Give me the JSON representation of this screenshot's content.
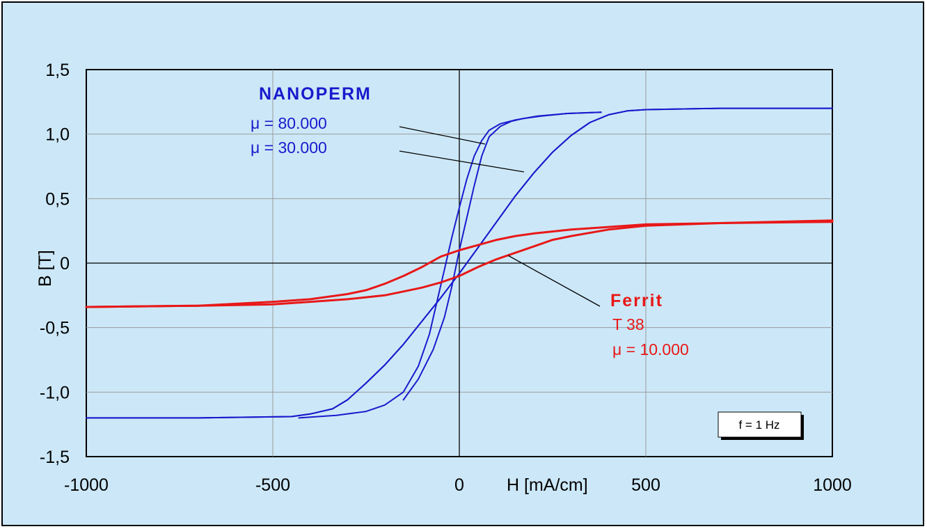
{
  "chart_data": {
    "type": "line",
    "xlabel": "H [mA/cm]",
    "ylabel": "B [T]",
    "xlim": [
      -1000,
      1000
    ],
    "ylim": [
      -1.5,
      1.5
    ],
    "x_ticks": [
      "-1000",
      "-500",
      "0",
      "500",
      "1000"
    ],
    "y_ticks": [
      "-1,5",
      "-1,0",
      "-0,5",
      "0",
      "0,5",
      "1,0",
      "1,5"
    ],
    "grid": true,
    "colors": {
      "nanoperm": "#1a1acc",
      "ferrit": "#e81818",
      "background": "#cce8f8",
      "plot": "#cce8f8"
    },
    "annotations": {
      "nanoperm": {
        "title": "NANOPERM",
        "lines": [
          "μ = 80.000",
          "μ = 30.000"
        ]
      },
      "ferrit": {
        "title": "Ferrit",
        "lines": [
          "T 38",
          "μ = 10.000"
        ]
      },
      "frequency": "f = 1 Hz"
    },
    "series": [
      {
        "color": "#1a1acc",
        "x": [
          -1000,
          -700,
          -450,
          -400,
          -340,
          -300,
          -250,
          -200,
          -150,
          -100,
          -50,
          0,
          50,
          100,
          150,
          200,
          250,
          300,
          350,
          400,
          450,
          500,
          700,
          1000
        ],
        "y": [
          -1.2,
          -1.2,
          -1.19,
          -1.17,
          -1.13,
          -1.06,
          -0.93,
          -0.79,
          -0.63,
          -0.45,
          -0.27,
          -0.08,
          0.12,
          0.32,
          0.52,
          0.7,
          0.86,
          0.99,
          1.09,
          1.15,
          1.18,
          1.19,
          1.2,
          1.2
        ]
      },
      {
        "color": "#1a1acc",
        "x": [
          -1000,
          -700,
          -450,
          -400,
          -340,
          -300,
          -250,
          -200,
          -150,
          -100,
          -50,
          0,
          50,
          100,
          150,
          200,
          250,
          300,
          350,
          400,
          450,
          500,
          700,
          1000
        ],
        "y": [
          -1.2,
          -1.2,
          -1.19,
          -1.17,
          -1.13,
          -1.06,
          -0.93,
          -0.79,
          -0.63,
          -0.45,
          -0.27,
          -0.08,
          0.12,
          0.32,
          0.52,
          0.7,
          0.86,
          0.99,
          1.09,
          1.15,
          1.18,
          1.19,
          1.2,
          1.2
        ]
      },
      {
        "color": "#1a1acc",
        "x": [
          -430,
          -330,
          -250,
          -200,
          -150,
          -110,
          -80,
          -60,
          -40,
          -20,
          0,
          20,
          40,
          60,
          80,
          110,
          150,
          210,
          290,
          380
        ],
        "y": [
          -1.2,
          -1.18,
          -1.15,
          -1.1,
          -1.0,
          -0.8,
          -0.55,
          -0.3,
          -0.05,
          0.2,
          0.43,
          0.65,
          0.83,
          0.95,
          1.03,
          1.08,
          1.11,
          1.14,
          1.16,
          1.17
        ]
      },
      {
        "color": "#1a1acc",
        "x": [
          -150,
          -110,
          -70,
          -40,
          -20,
          0,
          20,
          40,
          60,
          80,
          110,
          140,
          170,
          220,
          290,
          380
        ],
        "y": [
          -1.06,
          -0.9,
          -0.67,
          -0.42,
          -0.18,
          0.1,
          0.35,
          0.6,
          0.83,
          0.98,
          1.06,
          1.1,
          1.12,
          1.14,
          1.16,
          1.17
        ]
      },
      {
        "color": "#e81818",
        "x": [
          -1000,
          -700,
          -500,
          -400,
          -300,
          -250,
          -200,
          -150,
          -100,
          -50,
          0,
          50,
          100,
          150,
          200,
          300,
          400,
          500,
          700,
          1000
        ],
        "y": [
          -0.34,
          -0.33,
          -0.3,
          -0.28,
          -0.24,
          -0.21,
          -0.16,
          -0.1,
          -0.03,
          0.05,
          0.1,
          0.14,
          0.18,
          0.21,
          0.23,
          0.26,
          0.28,
          0.3,
          0.31,
          0.32
        ]
      },
      {
        "color": "#e81818",
        "x": [
          -1000,
          -700,
          -500,
          -400,
          -300,
          -200,
          -150,
          -100,
          -50,
          0,
          50,
          100,
          150,
          200,
          250,
          300,
          400,
          500,
          700,
          1000
        ],
        "y": [
          -0.34,
          -0.33,
          -0.32,
          -0.3,
          -0.28,
          -0.25,
          -0.22,
          -0.19,
          -0.15,
          -0.1,
          -0.03,
          0.03,
          0.08,
          0.13,
          0.18,
          0.21,
          0.26,
          0.29,
          0.31,
          0.33
        ]
      }
    ]
  }
}
